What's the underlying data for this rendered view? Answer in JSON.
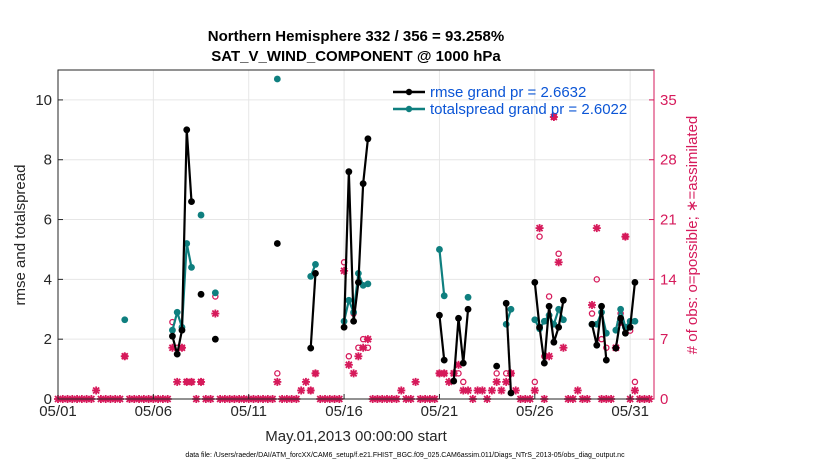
{
  "chart_data": {
    "type": "line",
    "title": "Northern Hemisphere 332 / 356 = 93.258%",
    "subtitle": "SAT_V_WIND_COMPONENT @ 1000 hPa",
    "xlabel": "May.01,2013 00:00:00 start",
    "ylabel": "rmse and totalspread",
    "y2label": "# of obs: o=possible; ∗=assimilated",
    "footnote": "data file: /Users/raeder/DAI/ATM_forcXX/CAM6_setup/f.e21.FHIST_BGC.f09_025.CAM6assim.011/Diags_NTrS_2013-05/obs_diag_output.nc",
    "x_ticks": [
      "05/01",
      "05/06",
      "05/11",
      "05/16",
      "05/21",
      "05/26",
      "05/31"
    ],
    "x_tick_days": [
      1,
      6,
      11,
      16,
      21,
      26,
      31
    ],
    "xlim": [
      1,
      32.25
    ],
    "ylim": [
      0,
      11
    ],
    "y_ticks": [
      "0",
      "2",
      "4",
      "6",
      "8",
      "10"
    ],
    "y2lim": [
      0,
      38.5
    ],
    "y2_ticks": [
      "0",
      "7",
      "14",
      "21",
      "28",
      "35"
    ],
    "grid": true,
    "colors": {
      "rmse": "#000000",
      "spread": "#0f7f7f",
      "obs": "#d61a5b",
      "legend_text": "#0b55d6"
    },
    "series": [
      {
        "name": "rmse grand pr = 2.6632",
        "color": "#000000",
        "marker": "dot",
        "segments": [
          [
            [
              7.0,
              2.1
            ],
            [
              7.25,
              1.5
            ],
            [
              7.5,
              2.3
            ],
            [
              7.75,
              9.0
            ],
            [
              8.0,
              6.6
            ]
          ],
          [
            [
              8.5,
              3.5
            ]
          ],
          [
            [
              9.25,
              2.0
            ]
          ],
          [
            [
              12.5,
              5.2
            ]
          ],
          [
            [
              14.25,
              1.7
            ],
            [
              14.5,
              4.2
            ]
          ],
          [
            [
              16.0,
              2.4
            ],
            [
              16.25,
              7.6
            ],
            [
              16.5,
              2.6
            ],
            [
              16.75,
              3.9
            ],
            [
              17.0,
              7.2
            ],
            [
              17.25,
              8.7
            ]
          ],
          [
            [
              21.0,
              2.8
            ],
            [
              21.25,
              1.3
            ]
          ],
          [
            [
              21.75,
              0.6
            ],
            [
              22.0,
              2.7
            ],
            [
              22.25,
              1.2
            ],
            [
              22.5,
              3.0
            ]
          ],
          [
            [
              24.0,
              1.1
            ]
          ],
          [
            [
              24.5,
              3.2
            ],
            [
              24.75,
              0.2
            ]
          ],
          [
            [
              26.0,
              3.9
            ],
            [
              26.25,
              2.4
            ],
            [
              26.5,
              1.2
            ],
            [
              26.75,
              3.1
            ],
            [
              27.0,
              1.9
            ],
            [
              27.25,
              2.4
            ],
            [
              27.5,
              3.3
            ]
          ],
          [
            [
              29.0,
              2.5
            ],
            [
              29.25,
              1.8
            ],
            [
              29.5,
              3.1
            ],
            [
              29.75,
              1.3
            ]
          ],
          [
            [
              30.25,
              1.7
            ],
            [
              30.5,
              2.7
            ],
            [
              30.75,
              2.2
            ],
            [
              31.0,
              2.4
            ],
            [
              31.25,
              3.9
            ]
          ]
        ]
      },
      {
        "name": "totalspread grand pr = 2.6022",
        "color": "#0f7f7f",
        "marker": "dot",
        "segments": [
          [
            [
              4.5,
              2.65
            ]
          ],
          [
            [
              7.0,
              2.3
            ],
            [
              7.25,
              2.9
            ],
            [
              7.5,
              2.4
            ],
            [
              7.75,
              5.2
            ],
            [
              8.0,
              4.4
            ]
          ],
          [
            [
              8.5,
              6.15
            ]
          ],
          [
            [
              9.25,
              3.55
            ]
          ],
          [
            [
              12.5,
              10.7
            ]
          ],
          [
            [
              14.25,
              4.1
            ],
            [
              14.5,
              4.5
            ]
          ],
          [
            [
              16.0,
              2.6
            ],
            [
              16.25,
              3.3
            ],
            [
              16.5,
              2.9
            ],
            [
              16.75,
              4.2
            ],
            [
              17.0,
              3.8
            ],
            [
              17.25,
              3.85
            ]
          ],
          [
            [
              21.0,
              5.0
            ],
            [
              21.25,
              3.45
            ]
          ],
          [
            [
              22.5,
              3.4
            ]
          ],
          [
            [
              24.5,
              2.5
            ],
            [
              24.75,
              3.0
            ]
          ],
          [
            [
              26.0,
              2.65
            ],
            [
              26.25,
              2.35
            ],
            [
              26.5,
              2.6
            ],
            [
              26.75,
              2.8
            ],
            [
              27.0,
              2.5
            ],
            [
              27.25,
              3.0
            ],
            [
              27.5,
              2.65
            ]
          ],
          [
            [
              29.0,
              2.5
            ],
            [
              29.25,
              2.5
            ],
            [
              29.5,
              2.9
            ],
            [
              29.75,
              2.2
            ]
          ],
          [
            [
              30.25,
              2.3
            ],
            [
              30.5,
              3.0
            ],
            [
              30.75,
              2.4
            ],
            [
              31.0,
              2.6
            ],
            [
              31.25,
              2.6
            ]
          ]
        ]
      },
      {
        "name": "obs possible",
        "color": "#d61a5b",
        "marker": "circle",
        "axis": "right",
        "points": [
          [
            4.5,
            5
          ],
          [
            7.0,
            9
          ],
          [
            7.25,
            6
          ],
          [
            7.5,
            6
          ],
          [
            7.75,
            2
          ],
          [
            8.0,
            2
          ],
          [
            8.5,
            2
          ],
          [
            9.25,
            12
          ],
          [
            12.5,
            3
          ],
          [
            14.25,
            1
          ],
          [
            14.5,
            3
          ],
          [
            16.0,
            16
          ],
          [
            16.25,
            5
          ],
          [
            16.5,
            10
          ],
          [
            16.75,
            6
          ],
          [
            17.0,
            7
          ],
          [
            17.25,
            6
          ],
          [
            21.0,
            3
          ],
          [
            21.25,
            3
          ],
          [
            21.75,
            3
          ],
          [
            22.0,
            3
          ],
          [
            22.25,
            2
          ],
          [
            24.0,
            3
          ],
          [
            24.5,
            3
          ],
          [
            24.75,
            3
          ],
          [
            26.0,
            2
          ],
          [
            26.25,
            19
          ],
          [
            26.5,
            5
          ],
          [
            26.75,
            12
          ],
          [
            27.0,
            33
          ],
          [
            27.25,
            17
          ],
          [
            29.0,
            10
          ],
          [
            29.25,
            14
          ],
          [
            29.5,
            7
          ],
          [
            29.75,
            6
          ],
          [
            30.25,
            6
          ],
          [
            30.5,
            10
          ],
          [
            30.75,
            19
          ],
          [
            31.0,
            8
          ],
          [
            31.25,
            2
          ]
        ]
      },
      {
        "name": "obs assimilated",
        "color": "#d61a5b",
        "marker": "star",
        "axis": "right",
        "points": [
          [
            1.0,
            0
          ],
          [
            1.25,
            0
          ],
          [
            1.5,
            0
          ],
          [
            1.75,
            0
          ],
          [
            2.0,
            0
          ],
          [
            2.25,
            0
          ],
          [
            2.5,
            0
          ],
          [
            2.75,
            0
          ],
          [
            3.0,
            1
          ],
          [
            3.25,
            0
          ],
          [
            3.5,
            0
          ],
          [
            3.75,
            0
          ],
          [
            4.0,
            0
          ],
          [
            4.25,
            0
          ],
          [
            4.5,
            5
          ],
          [
            4.75,
            0
          ],
          [
            5.0,
            0
          ],
          [
            5.25,
            0
          ],
          [
            5.5,
            0
          ],
          [
            5.75,
            0
          ],
          [
            6.0,
            0
          ],
          [
            6.25,
            0
          ],
          [
            6.5,
            0
          ],
          [
            6.75,
            0
          ],
          [
            7.0,
            6
          ],
          [
            7.25,
            2
          ],
          [
            7.5,
            6
          ],
          [
            7.75,
            2
          ],
          [
            8.0,
            2
          ],
          [
            8.25,
            0
          ],
          [
            8.5,
            2
          ],
          [
            8.75,
            0
          ],
          [
            9.0,
            0
          ],
          [
            9.25,
            10
          ],
          [
            9.5,
            0
          ],
          [
            9.75,
            0
          ],
          [
            10.0,
            0
          ],
          [
            10.25,
            0
          ],
          [
            10.5,
            0
          ],
          [
            10.75,
            0
          ],
          [
            11.0,
            0
          ],
          [
            11.25,
            0
          ],
          [
            11.5,
            0
          ],
          [
            11.75,
            0
          ],
          [
            12.0,
            0
          ],
          [
            12.25,
            0
          ],
          [
            12.5,
            2
          ],
          [
            12.75,
            0
          ],
          [
            13.0,
            0
          ],
          [
            13.25,
            0
          ],
          [
            13.5,
            0
          ],
          [
            13.75,
            1
          ],
          [
            14.0,
            2
          ],
          [
            14.25,
            1
          ],
          [
            14.5,
            3
          ],
          [
            14.75,
            0
          ],
          [
            15.0,
            0
          ],
          [
            15.25,
            0
          ],
          [
            15.5,
            0
          ],
          [
            15.75,
            0
          ],
          [
            16.0,
            15
          ],
          [
            16.25,
            4
          ],
          [
            16.5,
            3
          ],
          [
            16.75,
            5
          ],
          [
            17.0,
            6
          ],
          [
            17.25,
            7
          ],
          [
            17.5,
            0
          ],
          [
            17.75,
            0
          ],
          [
            18.0,
            0
          ],
          [
            18.25,
            0
          ],
          [
            18.5,
            0
          ],
          [
            18.75,
            0
          ],
          [
            19.0,
            1
          ],
          [
            19.25,
            0
          ],
          [
            19.5,
            0
          ],
          [
            19.75,
            2
          ],
          [
            20.0,
            0
          ],
          [
            20.25,
            0
          ],
          [
            20.5,
            0
          ],
          [
            20.75,
            0
          ],
          [
            21.0,
            3
          ],
          [
            21.25,
            3
          ],
          [
            21.5,
            2
          ],
          [
            21.75,
            3
          ],
          [
            22.0,
            4
          ],
          [
            22.25,
            1
          ],
          [
            22.5,
            1
          ],
          [
            22.75,
            0
          ],
          [
            23.0,
            1
          ],
          [
            23.25,
            1
          ],
          [
            23.5,
            0
          ],
          [
            23.75,
            1
          ],
          [
            24.0,
            2
          ],
          [
            24.25,
            1
          ],
          [
            24.5,
            2
          ],
          [
            24.75,
            3
          ],
          [
            25.0,
            1
          ],
          [
            25.25,
            0
          ],
          [
            25.5,
            0
          ],
          [
            25.75,
            0
          ],
          [
            26.0,
            1
          ],
          [
            26.25,
            20
          ],
          [
            26.5,
            0
          ],
          [
            26.75,
            5
          ],
          [
            27.0,
            33
          ],
          [
            27.25,
            16
          ],
          [
            27.5,
            6
          ],
          [
            27.75,
            0
          ],
          [
            28.0,
            0
          ],
          [
            28.25,
            1
          ],
          [
            28.5,
            0
          ],
          [
            28.75,
            0
          ],
          [
            29.0,
            11
          ],
          [
            29.25,
            20
          ],
          [
            29.5,
            0
          ],
          [
            29.75,
            0
          ],
          [
            30.0,
            0
          ],
          [
            30.25,
            6
          ],
          [
            30.5,
            9
          ],
          [
            30.75,
            19
          ],
          [
            31.0,
            0
          ],
          [
            31.25,
            1
          ],
          [
            31.5,
            0
          ],
          [
            31.75,
            0
          ],
          [
            32.0,
            0
          ]
        ]
      }
    ]
  }
}
